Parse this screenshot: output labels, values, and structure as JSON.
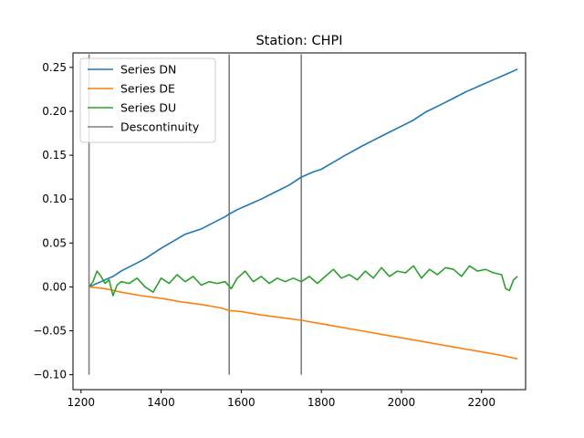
{
  "chart_data": {
    "type": "line",
    "title": "Station: CHPI",
    "xlabel": "",
    "ylabel": "",
    "xlim": [
      1180,
      2310
    ],
    "ylim": [
      -0.117,
      0.2665
    ],
    "x_ticks": [
      1200,
      1400,
      1600,
      1800,
      2000,
      2200
    ],
    "x_tick_labels": [
      "1200",
      "1400",
      "1600",
      "1800",
      "2000",
      "2200"
    ],
    "y_ticks": [
      -0.1,
      -0.05,
      0.0,
      0.05,
      0.1,
      0.15,
      0.2,
      0.25
    ],
    "y_tick_labels": [
      "−0.10",
      "−0.05",
      "0.00",
      "0.05",
      "0.10",
      "0.15",
      "0.20",
      "0.25"
    ],
    "grid": false,
    "legend_position": "top-left",
    "series": [
      {
        "name": "Series DN",
        "color": "#1f77b4",
        "x": [
          1220,
          1250,
          1280,
          1300,
          1330,
          1360,
          1400,
          1430,
          1460,
          1500,
          1530,
          1560,
          1570,
          1590,
          1620,
          1650,
          1680,
          1720,
          1750,
          1780,
          1800,
          1830,
          1860,
          1900,
          1930,
          1960,
          2000,
          2030,
          2060,
          2100,
          2130,
          2160,
          2200,
          2230,
          2260,
          2290
        ],
        "y": [
          0.0,
          0.006,
          0.012,
          0.018,
          0.025,
          0.032,
          0.044,
          0.052,
          0.06,
          0.066,
          0.073,
          0.08,
          0.083,
          0.088,
          0.094,
          0.1,
          0.107,
          0.116,
          0.125,
          0.131,
          0.134,
          0.142,
          0.15,
          0.16,
          0.167,
          0.174,
          0.183,
          0.19,
          0.199,
          0.208,
          0.215,
          0.222,
          0.23,
          0.236,
          0.242,
          0.248
        ]
      },
      {
        "name": "Series DE",
        "color": "#ff7f0e",
        "x": [
          1220,
          1260,
          1300,
          1350,
          1400,
          1450,
          1500,
          1550,
          1570,
          1600,
          1650,
          1700,
          1750,
          1800,
          1850,
          1900,
          1950,
          2000,
          2050,
          2100,
          2150,
          2200,
          2250,
          2290
        ],
        "y": [
          0.0,
          -0.002,
          -0.006,
          -0.01,
          -0.013,
          -0.017,
          -0.02,
          -0.024,
          -0.027,
          -0.028,
          -0.032,
          -0.035,
          -0.038,
          -0.042,
          -0.046,
          -0.05,
          -0.054,
          -0.058,
          -0.062,
          -0.066,
          -0.07,
          -0.074,
          -0.078,
          -0.082
        ]
      },
      {
        "name": "Series DU",
        "color": "#2ca02c",
        "x": [
          1220,
          1230,
          1240,
          1250,
          1260,
          1270,
          1280,
          1290,
          1300,
          1320,
          1340,
          1360,
          1380,
          1400,
          1420,
          1440,
          1460,
          1480,
          1500,
          1520,
          1540,
          1560,
          1575,
          1590,
          1610,
          1630,
          1650,
          1670,
          1690,
          1710,
          1730,
          1750,
          1770,
          1790,
          1810,
          1830,
          1850,
          1870,
          1890,
          1910,
          1930,
          1950,
          1970,
          1990,
          2010,
          2030,
          2050,
          2070,
          2090,
          2110,
          2130,
          2150,
          2170,
          2190,
          2210,
          2230,
          2250,
          2260,
          2270,
          2280,
          2290
        ],
        "y": [
          0.0,
          0.006,
          0.018,
          0.012,
          0.004,
          0.008,
          -0.01,
          0.002,
          0.006,
          0.004,
          0.01,
          0.0,
          -0.006,
          0.01,
          0.004,
          0.014,
          0.006,
          0.012,
          0.002,
          0.006,
          0.004,
          0.006,
          -0.002,
          0.01,
          0.018,
          0.006,
          0.012,
          0.004,
          0.01,
          0.006,
          0.01,
          0.006,
          0.012,
          0.004,
          0.012,
          0.02,
          0.01,
          0.014,
          0.008,
          0.018,
          0.01,
          0.022,
          0.012,
          0.018,
          0.016,
          0.024,
          0.01,
          0.02,
          0.014,
          0.022,
          0.02,
          0.012,
          0.024,
          0.018,
          0.02,
          0.016,
          0.014,
          -0.002,
          -0.004,
          0.008,
          0.012
        ]
      }
    ],
    "discontinuities": {
      "name": "Descontinuity",
      "color": "#7f7f7f",
      "x": [
        1220,
        1570,
        1750
      ],
      "y_range": [
        -0.1,
        0.265
      ]
    }
  }
}
